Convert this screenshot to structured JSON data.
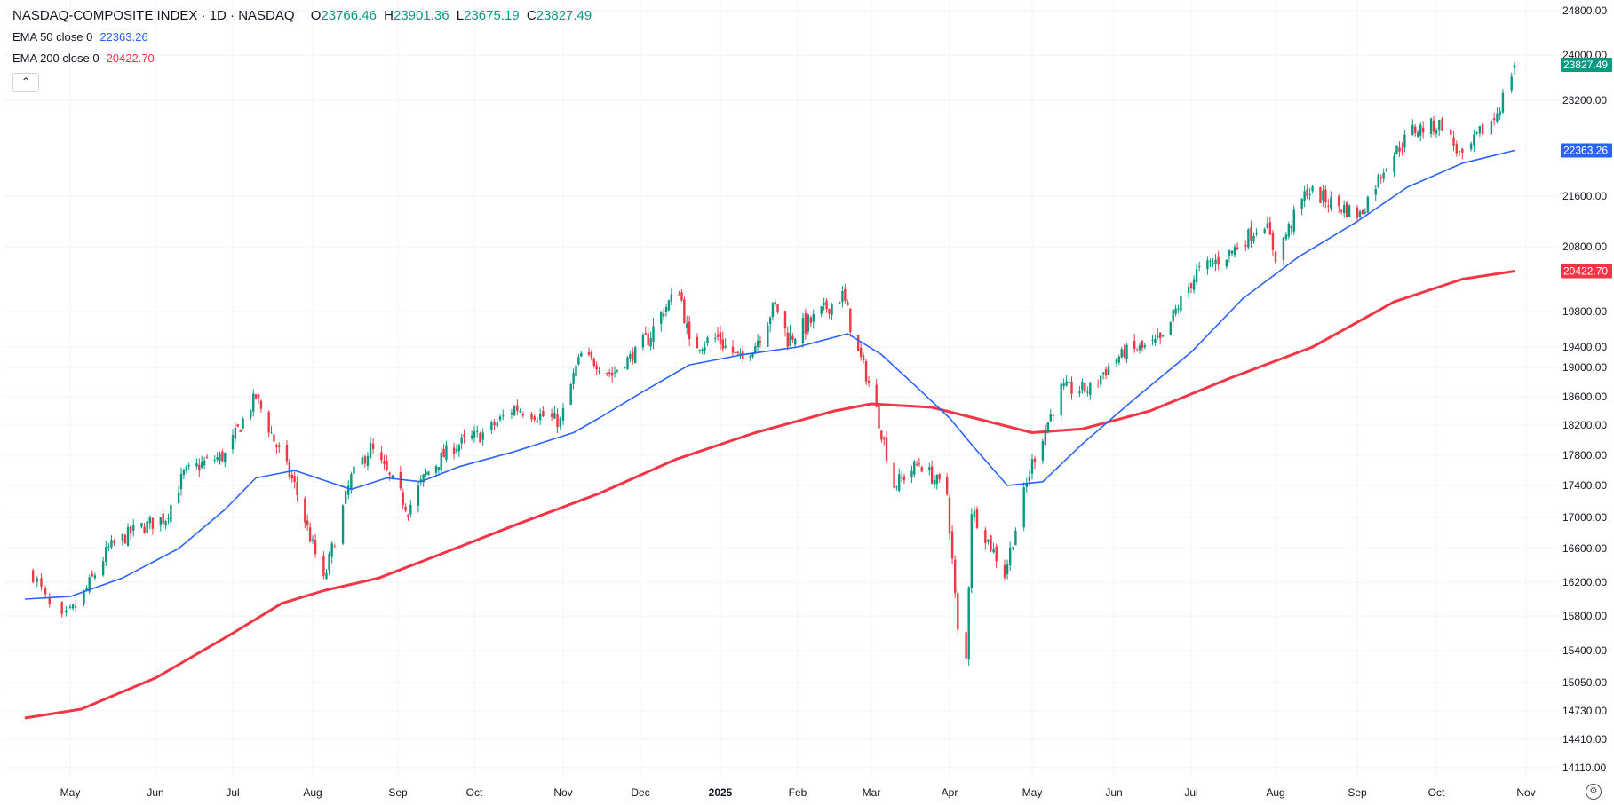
{
  "legend": {
    "title": "NASDAQ-COMPOSITE INDEX · 1D · NASDAQ",
    "o_label": "O",
    "o_value": "23766.46",
    "h_label": "H",
    "h_value": "23901.36",
    "l_label": "L",
    "l_value": "23675.19",
    "c_label": "C",
    "c_value": "23827.49",
    "ema50_label": "EMA 50 close 0",
    "ema50_value": "22363.26",
    "ema200_label": "EMA 200 close 0",
    "ema200_value": "20422.70",
    "collapse_icon": "chevron-up-icon"
  },
  "settings_icon": "gear-icon",
  "colors": {
    "up": "#089981",
    "down": "#f23645",
    "ema50": "#2962ff",
    "ema200": "#f23645",
    "last_price": "#089981",
    "grid": "#f0f3fa",
    "axis_text": "#131722"
  },
  "chart_data": {
    "type": "candlestick",
    "y_ticks": [
      "24800.00",
      "24000.00",
      "23200.00",
      "21600.00",
      "20800.00",
      "19800.00",
      "19400.00",
      "19000.00",
      "18600.00",
      "18200.00",
      "17800.00",
      "17400.00",
      "17000.00",
      "16600.00",
      "16200.00",
      "15800.00",
      "15400.00",
      "15050.00",
      "14730.00",
      "14410.00",
      "14110.00"
    ],
    "x_ticks": [
      "May",
      "Jun",
      "Jul",
      "Aug",
      "Sep",
      "Oct",
      "Nov",
      "Dec",
      "2025",
      "Feb",
      "Mar",
      "Apr",
      "May",
      "Jun",
      "Jul",
      "Aug",
      "Sep",
      "Oct",
      "Nov"
    ],
    "price_labels": [
      {
        "text": "23827.49",
        "value": 23827.49,
        "color": "#089981"
      },
      {
        "text": "22363.26",
        "value": 22363.26,
        "color": "#2962ff"
      },
      {
        "text": "20422.70",
        "value": 20422.7,
        "color": "#f23645"
      }
    ],
    "close_path": [
      {
        "date": "2024-04-22",
        "v": 16300
      },
      {
        "date": "2024-04-28",
        "v": 15700
      },
      {
        "date": "2024-05-05",
        "v": 16000
      },
      {
        "date": "2024-05-15",
        "v": 16600
      },
      {
        "date": "2024-05-25",
        "v": 16850
      },
      {
        "date": "2024-06-05",
        "v": 17000
      },
      {
        "date": "2024-06-12",
        "v": 17550
      },
      {
        "date": "2024-06-20",
        "v": 17700
      },
      {
        "date": "2024-06-28",
        "v": 17800
      },
      {
        "date": "2024-07-10",
        "v": 18600
      },
      {
        "date": "2024-07-17",
        "v": 18000
      },
      {
        "date": "2024-07-25",
        "v": 17400
      },
      {
        "date": "2024-08-05",
        "v": 16200
      },
      {
        "date": "2024-08-15",
        "v": 17500
      },
      {
        "date": "2024-08-22",
        "v": 17900
      },
      {
        "date": "2024-09-05",
        "v": 17100
      },
      {
        "date": "2024-09-12",
        "v": 17550
      },
      {
        "date": "2024-09-22",
        "v": 17900
      },
      {
        "date": "2024-10-05",
        "v": 18100
      },
      {
        "date": "2024-10-15",
        "v": 18450
      },
      {
        "date": "2024-10-31",
        "v": 18250
      },
      {
        "date": "2024-11-08",
        "v": 19250
      },
      {
        "date": "2024-11-20",
        "v": 18900
      },
      {
        "date": "2024-12-05",
        "v": 19550
      },
      {
        "date": "2024-12-16",
        "v": 20150
      },
      {
        "date": "2024-12-20",
        "v": 19400
      },
      {
        "date": "2024-12-31",
        "v": 19500
      },
      {
        "date": "2025-01-10",
        "v": 19150
      },
      {
        "date": "2025-01-23",
        "v": 19900
      },
      {
        "date": "2025-01-28",
        "v": 19500
      },
      {
        "date": "2025-02-07",
        "v": 19700
      },
      {
        "date": "2025-02-18",
        "v": 20050
      },
      {
        "date": "2025-03-03",
        "v": 18400
      },
      {
        "date": "2025-03-10",
        "v": 17400
      },
      {
        "date": "2025-03-20",
        "v": 17700
      },
      {
        "date": "2025-03-31",
        "v": 17300
      },
      {
        "date": "2025-04-04",
        "v": 15600
      },
      {
        "date": "2025-04-07",
        "v": 15300
      },
      {
        "date": "2025-04-09",
        "v": 17100
      },
      {
        "date": "2025-04-21",
        "v": 16300
      },
      {
        "date": "2025-05-01",
        "v": 17700
      },
      {
        "date": "2025-05-12",
        "v": 18700
      },
      {
        "date": "2025-05-23",
        "v": 18700
      },
      {
        "date": "2025-06-05",
        "v": 19300
      },
      {
        "date": "2025-06-20",
        "v": 19450
      },
      {
        "date": "2025-07-03",
        "v": 20400
      },
      {
        "date": "2025-07-15",
        "v": 20700
      },
      {
        "date": "2025-07-28",
        "v": 21200
      },
      {
        "date": "2025-08-01",
        "v": 20650
      },
      {
        "date": "2025-08-13",
        "v": 21700
      },
      {
        "date": "2025-08-22",
        "v": 21500
      },
      {
        "date": "2025-09-02",
        "v": 21300
      },
      {
        "date": "2025-09-12",
        "v": 22150
      },
      {
        "date": "2025-09-22",
        "v": 22700
      },
      {
        "date": "2025-10-03",
        "v": 22800
      },
      {
        "date": "2025-10-10",
        "v": 22200
      },
      {
        "date": "2025-10-16",
        "v": 22650
      },
      {
        "date": "2025-10-21",
        "v": 22900
      },
      {
        "date": "2025-10-24",
        "v": 23250
      },
      {
        "date": "2025-10-28",
        "v": 23827.49
      }
    ],
    "ema50": [
      {
        "date": "2024-04-20",
        "v": 16000
      },
      {
        "date": "2024-05-01",
        "v": 16030
      },
      {
        "date": "2024-05-20",
        "v": 16250
      },
      {
        "date": "2024-06-10",
        "v": 16600
      },
      {
        "date": "2024-06-28",
        "v": 17100
      },
      {
        "date": "2024-07-10",
        "v": 17500
      },
      {
        "date": "2024-07-25",
        "v": 17600
      },
      {
        "date": "2024-08-15",
        "v": 17350
      },
      {
        "date": "2024-08-28",
        "v": 17500
      },
      {
        "date": "2024-09-10",
        "v": 17450
      },
      {
        "date": "2024-09-25",
        "v": 17650
      },
      {
        "date": "2024-10-15",
        "v": 17850
      },
      {
        "date": "2024-11-05",
        "v": 18100
      },
      {
        "date": "2024-11-15",
        "v": 18300
      },
      {
        "date": "2024-12-01",
        "v": 18650
      },
      {
        "date": "2024-12-20",
        "v": 19050
      },
      {
        "date": "2025-01-10",
        "v": 19250
      },
      {
        "date": "2025-02-01",
        "v": 19400
      },
      {
        "date": "2025-02-20",
        "v": 19550
      },
      {
        "date": "2025-03-05",
        "v": 19250
      },
      {
        "date": "2025-03-20",
        "v": 18700
      },
      {
        "date": "2025-04-01",
        "v": 18300
      },
      {
        "date": "2025-04-10",
        "v": 17900
      },
      {
        "date": "2025-04-22",
        "v": 17400
      },
      {
        "date": "2025-05-05",
        "v": 17450
      },
      {
        "date": "2025-05-20",
        "v": 17950
      },
      {
        "date": "2025-06-10",
        "v": 18600
      },
      {
        "date": "2025-07-01",
        "v": 19300
      },
      {
        "date": "2025-07-20",
        "v": 20000
      },
      {
        "date": "2025-08-10",
        "v": 20650
      },
      {
        "date": "2025-09-01",
        "v": 21200
      },
      {
        "date": "2025-09-20",
        "v": 21750
      },
      {
        "date": "2025-10-10",
        "v": 22150
      },
      {
        "date": "2025-10-28",
        "v": 22363.26
      }
    ],
    "ema200": [
      {
        "date": "2024-04-20",
        "v": 14650
      },
      {
        "date": "2024-05-05",
        "v": 14750
      },
      {
        "date": "2024-06-01",
        "v": 15100
      },
      {
        "date": "2024-07-01",
        "v": 15600
      },
      {
        "date": "2024-07-20",
        "v": 15950
      },
      {
        "date": "2024-08-05",
        "v": 16100
      },
      {
        "date": "2024-08-25",
        "v": 16250
      },
      {
        "date": "2024-09-15",
        "v": 16500
      },
      {
        "date": "2024-10-15",
        "v": 16900
      },
      {
        "date": "2024-11-15",
        "v": 17300
      },
      {
        "date": "2024-12-15",
        "v": 17750
      },
      {
        "date": "2025-01-15",
        "v": 18100
      },
      {
        "date": "2025-02-15",
        "v": 18400
      },
      {
        "date": "2025-03-01",
        "v": 18500
      },
      {
        "date": "2025-03-25",
        "v": 18450
      },
      {
        "date": "2025-04-10",
        "v": 18300
      },
      {
        "date": "2025-05-01",
        "v": 18100
      },
      {
        "date": "2025-05-20",
        "v": 18150
      },
      {
        "date": "2025-06-15",
        "v": 18400
      },
      {
        "date": "2025-07-15",
        "v": 18850
      },
      {
        "date": "2025-08-15",
        "v": 19400
      },
      {
        "date": "2025-09-15",
        "v": 19950
      },
      {
        "date": "2025-10-10",
        "v": 20300
      },
      {
        "date": "2025-10-28",
        "v": 20422.7
      }
    ]
  }
}
